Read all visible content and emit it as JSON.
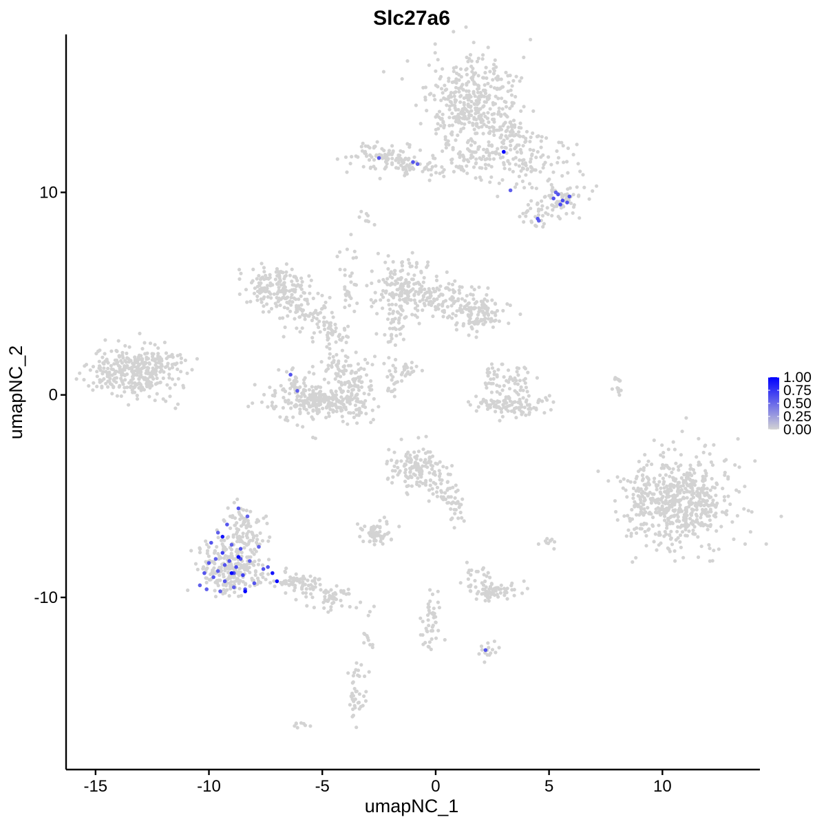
{
  "chart_data": {
    "type": "scatter",
    "title": "Slc27a6",
    "xlabel": "umapNC_1",
    "ylabel": "umapNC_2",
    "xlim": [
      -16.3,
      14.3
    ],
    "ylim": [
      -18.5,
      17.8
    ],
    "xticks": [
      -15,
      -10,
      -5,
      0,
      5,
      10
    ],
    "xtick_labels": [
      "-15",
      "-10",
      "-5",
      "0",
      "5",
      "10"
    ],
    "yticks": [
      -10,
      0,
      10
    ],
    "ytick_labels": [
      "-10",
      "0",
      "10"
    ],
    "grid": false,
    "legend": {
      "placement": "right",
      "labels": [
        "1.00",
        "0.75",
        "0.50",
        "0.25",
        "0.00"
      ],
      "values": [
        1.0,
        0.75,
        0.5,
        0.25,
        0.0
      ],
      "color_low": "#d3d3d3",
      "color_high": "#0000ff"
    },
    "point_color_background": "#d3d3d3",
    "clusters": [
      {
        "cx": 1.7,
        "cy": 14.2,
        "sx": 1.0,
        "sy": 1.2,
        "n": 420
      },
      {
        "cx": 3.6,
        "cy": 11.8,
        "sx": 1.3,
        "sy": 0.8,
        "n": 160
      },
      {
        "cx": 5.5,
        "cy": 9.7,
        "sx": 0.45,
        "sy": 0.4,
        "n": 70
      },
      {
        "cx": 4.3,
        "cy": 8.9,
        "sx": 0.4,
        "sy": 0.3,
        "n": 30
      },
      {
        "cx": -2.3,
        "cy": 11.7,
        "sx": 0.7,
        "sy": 0.35,
        "n": 90
      },
      {
        "cx": -1.0,
        "cy": 11.3,
        "sx": 0.7,
        "sy": 0.2,
        "n": 35
      },
      {
        "cx": 1.0,
        "cy": 11.4,
        "sx": 0.6,
        "sy": 0.4,
        "n": 40
      },
      {
        "cx": -3.0,
        "cy": 8.7,
        "sx": 0.2,
        "sy": 0.2,
        "n": 8
      },
      {
        "cx": -13.3,
        "cy": 1.2,
        "sx": 0.9,
        "sy": 0.65,
        "n": 320
      },
      {
        "cx": -12.0,
        "cy": 1.7,
        "sx": 0.5,
        "sy": 0.5,
        "n": 30
      },
      {
        "cx": -7.0,
        "cy": 5.3,
        "sx": 0.7,
        "sy": 0.55,
        "n": 170
      },
      {
        "cx": -5.5,
        "cy": 4.0,
        "sx": 0.6,
        "sy": 0.6,
        "n": 60
      },
      {
        "cx": -4.6,
        "cy": 3.0,
        "sx": 0.4,
        "sy": 0.4,
        "n": 40
      },
      {
        "cx": -3.8,
        "cy": 5.5,
        "sx": 0.25,
        "sy": 1.2,
        "n": 30
      },
      {
        "cx": -4.5,
        "cy": 1.5,
        "sx": 0.3,
        "sy": 0.4,
        "n": 25
      },
      {
        "cx": -5.0,
        "cy": -0.3,
        "sx": 1.1,
        "sy": 0.45,
        "n": 280
      },
      {
        "cx": -3.8,
        "cy": 0.8,
        "sx": 0.45,
        "sy": 0.6,
        "n": 80
      },
      {
        "cx": -6.2,
        "cy": 0.7,
        "sx": 0.3,
        "sy": 0.35,
        "n": 20
      },
      {
        "cx": -1.5,
        "cy": 5.3,
        "sx": 0.6,
        "sy": 0.75,
        "n": 140
      },
      {
        "cx": 0.0,
        "cy": 4.8,
        "sx": 0.9,
        "sy": 0.5,
        "n": 110
      },
      {
        "cx": 1.9,
        "cy": 4.0,
        "sx": 0.6,
        "sy": 0.45,
        "n": 120
      },
      {
        "cx": -1.9,
        "cy": 3.3,
        "sx": 0.3,
        "sy": 0.45,
        "n": 30
      },
      {
        "cx": -1.8,
        "cy": 1.0,
        "sx": 0.25,
        "sy": 0.5,
        "n": 20
      },
      {
        "cx": -1.3,
        "cy": 1.3,
        "sx": 0.35,
        "sy": 0.3,
        "n": 20
      },
      {
        "cx": 3.4,
        "cy": -0.5,
        "sx": 0.9,
        "sy": 0.25,
        "n": 110
      },
      {
        "cx": 2.6,
        "cy": 0.9,
        "sx": 0.3,
        "sy": 0.4,
        "n": 30
      },
      {
        "cx": 3.6,
        "cy": 0.7,
        "sx": 0.3,
        "sy": 0.4,
        "n": 30
      },
      {
        "cx": 8.0,
        "cy": 0.5,
        "sx": 0.12,
        "sy": 0.35,
        "n": 14
      },
      {
        "cx": 10.7,
        "cy": -5.3,
        "sx": 1.15,
        "sy": 1.1,
        "n": 560
      },
      {
        "cx": 9.2,
        "cy": -5.0,
        "sx": 0.35,
        "sy": 0.6,
        "n": 35
      },
      {
        "cx": -0.9,
        "cy": -3.7,
        "sx": 0.55,
        "sy": 0.55,
        "n": 130
      },
      {
        "cx": 0.4,
        "cy": -4.6,
        "sx": 0.3,
        "sy": 0.6,
        "n": 35
      },
      {
        "cx": 0.9,
        "cy": -5.7,
        "sx": 0.2,
        "sy": 0.5,
        "n": 25
      },
      {
        "cx": -2.5,
        "cy": -6.8,
        "sx": 0.4,
        "sy": 0.3,
        "n": 60
      },
      {
        "cx": 2.5,
        "cy": -9.6,
        "sx": 0.6,
        "sy": 0.25,
        "n": 70
      },
      {
        "cx": 1.9,
        "cy": -8.8,
        "sx": 0.3,
        "sy": 0.25,
        "n": 15
      },
      {
        "cx": -0.3,
        "cy": -11.0,
        "sx": 0.25,
        "sy": 0.9,
        "n": 45
      },
      {
        "cx": -3.5,
        "cy": -14.7,
        "sx": 0.2,
        "sy": 0.7,
        "n": 40
      },
      {
        "cx": -2.9,
        "cy": -11.9,
        "sx": 0.15,
        "sy": 0.6,
        "n": 12
      },
      {
        "cx": 2.4,
        "cy": -12.6,
        "sx": 0.25,
        "sy": 0.25,
        "n": 15
      },
      {
        "cx": -6.0,
        "cy": -16.3,
        "sx": 0.2,
        "sy": 0.1,
        "n": 8
      },
      {
        "cx": 5.0,
        "cy": -7.3,
        "sx": 0.15,
        "sy": 0.15,
        "n": 10
      },
      {
        "cx": -9.0,
        "cy": -8.6,
        "sx": 0.7,
        "sy": 0.65,
        "n": 260
      },
      {
        "cx": -8.5,
        "cy": -6.6,
        "sx": 0.45,
        "sy": 0.6,
        "n": 90
      },
      {
        "cx": -6.0,
        "cy": -9.3,
        "sx": 0.55,
        "sy": 0.3,
        "n": 70
      },
      {
        "cx": -4.6,
        "cy": -10.0,
        "sx": 0.5,
        "sy": 0.3,
        "n": 50
      }
    ],
    "expressing_points": [
      [
        -9.4,
        -7.8,
        0.7
      ],
      [
        -9.1,
        -8.2,
        0.6
      ],
      [
        -8.8,
        -8.5,
        0.65
      ],
      [
        -9.6,
        -8.7,
        0.55
      ],
      [
        -9.3,
        -9.2,
        0.6
      ],
      [
        -8.5,
        -8.9,
        0.7
      ],
      [
        -8.9,
        -9.5,
        0.55
      ],
      [
        -9.8,
        -9.0,
        0.6
      ],
      [
        -10.0,
        -8.3,
        0.6
      ],
      [
        -9.0,
        -7.4,
        0.55
      ],
      [
        -8.6,
        -7.6,
        0.6
      ],
      [
        -8.2,
        -8.2,
        0.55
      ],
      [
        -8.4,
        -9.6,
        0.6
      ],
      [
        -9.5,
        -9.7,
        0.55
      ],
      [
        -10.2,
        -8.8,
        0.6
      ],
      [
        -9.2,
        -6.4,
        0.6
      ],
      [
        -8.3,
        -6.0,
        0.55
      ],
      [
        -8.7,
        -5.6,
        0.6
      ],
      [
        -9.6,
        -6.8,
        0.55
      ],
      [
        -7.8,
        -7.5,
        0.55
      ],
      [
        -7.6,
        -8.6,
        0.6
      ],
      [
        -8.0,
        -9.3,
        0.6
      ],
      [
        -10.4,
        -9.4,
        0.55
      ],
      [
        -9.9,
        -7.3,
        0.6
      ],
      [
        -8.9,
        -8.8,
        0.65
      ],
      [
        -9.3,
        -8.4,
        0.6
      ],
      [
        -8.6,
        -8.1,
        0.6
      ],
      [
        -9.7,
        -8.1,
        0.55
      ],
      [
        -9.4,
        -7.0,
        0.9
      ],
      [
        -8.7,
        -8.0,
        0.95
      ],
      [
        -9.0,
        -8.8,
        1.0
      ],
      [
        -8.4,
        -9.7,
        1.0
      ],
      [
        -7.2,
        -8.8,
        0.9
      ],
      [
        -7.0,
        -9.2,
        1.0
      ],
      [
        -7.4,
        -8.5,
        0.6
      ],
      [
        -10.1,
        -9.6,
        0.55
      ],
      [
        5.4,
        9.9,
        0.6
      ],
      [
        5.6,
        9.6,
        0.65
      ],
      [
        5.2,
        9.7,
        0.6
      ],
      [
        5.8,
        9.5,
        0.6
      ],
      [
        5.5,
        9.4,
        0.65
      ],
      [
        5.9,
        9.8,
        0.6
      ],
      [
        5.3,
        10.0,
        0.55
      ],
      [
        4.5,
        8.7,
        0.6
      ],
      [
        4.55,
        8.6,
        0.55
      ],
      [
        3.3,
        10.1,
        0.55
      ],
      [
        3.0,
        12.0,
        1.0
      ],
      [
        -2.5,
        11.7,
        0.6
      ],
      [
        -1.0,
        11.5,
        0.6
      ],
      [
        -0.8,
        11.4,
        0.55
      ],
      [
        -6.4,
        1.0,
        0.6
      ],
      [
        -6.1,
        0.2,
        0.55
      ],
      [
        2.2,
        -12.6,
        0.6
      ]
    ]
  }
}
